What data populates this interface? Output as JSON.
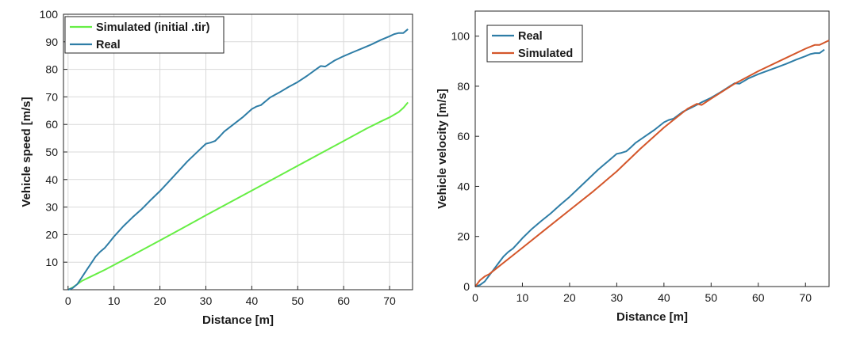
{
  "chart_data": [
    {
      "type": "line",
      "xlabel": "Distance [m]",
      "ylabel": "Vehicle speed [m/s]",
      "xlim": [
        -1,
        75
      ],
      "ylim": [
        0,
        100
      ],
      "xticks": [
        0,
        10,
        20,
        30,
        40,
        50,
        60,
        70
      ],
      "yticks": [
        10,
        20,
        30,
        40,
        50,
        60,
        70,
        80,
        90,
        100
      ],
      "grid": true,
      "legend_position": "top-left",
      "series": [
        {
          "name": "Simulated (initial .tir)",
          "color": "#66ee44",
          "points": [
            [
              0,
              0
            ],
            [
              1,
              0.8
            ],
            [
              2,
              2
            ],
            [
              3,
              3.2
            ],
            [
              5,
              4.8
            ],
            [
              8,
              7.2
            ],
            [
              10,
              9
            ],
            [
              15,
              13.4
            ],
            [
              20,
              17.9
            ],
            [
              25,
              22.4
            ],
            [
              30,
              27
            ],
            [
              35,
              31.5
            ],
            [
              40,
              36
            ],
            [
              45,
              40.5
            ],
            [
              50,
              45
            ],
            [
              55,
              49.5
            ],
            [
              60,
              54
            ],
            [
              65,
              58.5
            ],
            [
              68,
              61
            ],
            [
              70,
              62.6
            ],
            [
              72,
              64.5
            ],
            [
              73,
              66
            ],
            [
              74,
              68
            ]
          ]
        },
        {
          "name": "Real",
          "color": "#2e7da6",
          "points": [
            [
              0,
              0
            ],
            [
              1,
              0.6
            ],
            [
              2,
              2
            ],
            [
              3,
              4.5
            ],
            [
              4,
              7
            ],
            [
              5,
              9.5
            ],
            [
              6,
              12
            ],
            [
              7,
              13.8
            ],
            [
              8,
              15.2
            ],
            [
              9,
              17.2
            ],
            [
              10,
              19.3
            ],
            [
              12,
              23
            ],
            [
              14,
              26.2
            ],
            [
              16,
              29.2
            ],
            [
              18,
              32.6
            ],
            [
              20,
              35.8
            ],
            [
              22,
              39.4
            ],
            [
              24,
              43
            ],
            [
              26,
              46.6
            ],
            [
              28,
              49.8
            ],
            [
              30,
              53
            ],
            [
              31,
              53.4
            ],
            [
              32,
              54
            ],
            [
              33,
              55.6
            ],
            [
              34,
              57.4
            ],
            [
              36,
              60
            ],
            [
              38,
              62.6
            ],
            [
              40,
              65.6
            ],
            [
              41,
              66.5
            ],
            [
              42,
              67
            ],
            [
              44,
              69.8
            ],
            [
              46,
              71.6
            ],
            [
              48,
              73.6
            ],
            [
              50,
              75.4
            ],
            [
              52,
              77.6
            ],
            [
              54,
              80
            ],
            [
              55,
              81.2
            ],
            [
              56,
              81
            ],
            [
              58,
              83.2
            ],
            [
              60,
              84.8
            ],
            [
              62,
              86.2
            ],
            [
              64,
              87.6
            ],
            [
              66,
              89
            ],
            [
              68,
              90.6
            ],
            [
              70,
              92
            ],
            [
              71,
              92.8
            ],
            [
              72,
              93.2
            ],
            [
              73,
              93.2
            ],
            [
              74,
              94.6
            ]
          ]
        }
      ]
    },
    {
      "type": "line",
      "xlabel": "Distance [m]",
      "ylabel": "Vehicle velocity [m/s]",
      "xlim": [
        0,
        75
      ],
      "ylim": [
        0,
        110
      ],
      "xticks": [
        0,
        10,
        20,
        30,
        40,
        50,
        60,
        70
      ],
      "yticks": [
        0,
        20,
        40,
        60,
        80,
        100
      ],
      "grid": false,
      "legend_position": "top-left",
      "series": [
        {
          "name": "Real",
          "color": "#2e7da6",
          "points": [
            [
              0,
              0
            ],
            [
              1,
              0.6
            ],
            [
              2,
              2
            ],
            [
              3,
              4.5
            ],
            [
              4,
              7
            ],
            [
              5,
              9.5
            ],
            [
              6,
              12
            ],
            [
              7,
              13.8
            ],
            [
              8,
              15.2
            ],
            [
              9,
              17.2
            ],
            [
              10,
              19.3
            ],
            [
              12,
              23
            ],
            [
              14,
              26.2
            ],
            [
              16,
              29.2
            ],
            [
              18,
              32.6
            ],
            [
              20,
              35.8
            ],
            [
              22,
              39.4
            ],
            [
              24,
              43
            ],
            [
              26,
              46.6
            ],
            [
              28,
              49.8
            ],
            [
              30,
              53
            ],
            [
              31,
              53.4
            ],
            [
              32,
              54
            ],
            [
              33,
              55.6
            ],
            [
              34,
              57.4
            ],
            [
              36,
              60
            ],
            [
              38,
              62.6
            ],
            [
              40,
              65.6
            ],
            [
              41,
              66.5
            ],
            [
              42,
              67
            ],
            [
              44,
              69.8
            ],
            [
              46,
              71.6
            ],
            [
              48,
              73.6
            ],
            [
              50,
              75.4
            ],
            [
              52,
              77.6
            ],
            [
              54,
              80
            ],
            [
              55,
              81.2
            ],
            [
              56,
              81
            ],
            [
              58,
              83.2
            ],
            [
              60,
              84.8
            ],
            [
              62,
              86.2
            ],
            [
              64,
              87.6
            ],
            [
              66,
              89
            ],
            [
              68,
              90.6
            ],
            [
              70,
              92
            ],
            [
              71,
              92.8
            ],
            [
              72,
              93.2
            ],
            [
              73,
              93.2
            ],
            [
              74,
              94.6
            ]
          ]
        },
        {
          "name": "Simulated",
          "color": "#d4562a",
          "points": [
            [
              0,
              0
            ],
            [
              1,
              2.5
            ],
            [
              2,
              4
            ],
            [
              3,
              5
            ],
            [
              5,
              8
            ],
            [
              8,
              12.5
            ],
            [
              10,
              15.5
            ],
            [
              15,
              23
            ],
            [
              20,
              30.5
            ],
            [
              25,
              38
            ],
            [
              30,
              46
            ],
            [
              35,
              55
            ],
            [
              40,
              63.5
            ],
            [
              45,
              71
            ],
            [
              47,
              73
            ],
            [
              48,
              72.5
            ],
            [
              50,
              75
            ],
            [
              55,
              81
            ],
            [
              60,
              86
            ],
            [
              65,
              90.5
            ],
            [
              70,
              95
            ],
            [
              72,
              96.5
            ],
            [
              73,
              96.5
            ],
            [
              75,
              98.3
            ]
          ]
        }
      ]
    }
  ]
}
